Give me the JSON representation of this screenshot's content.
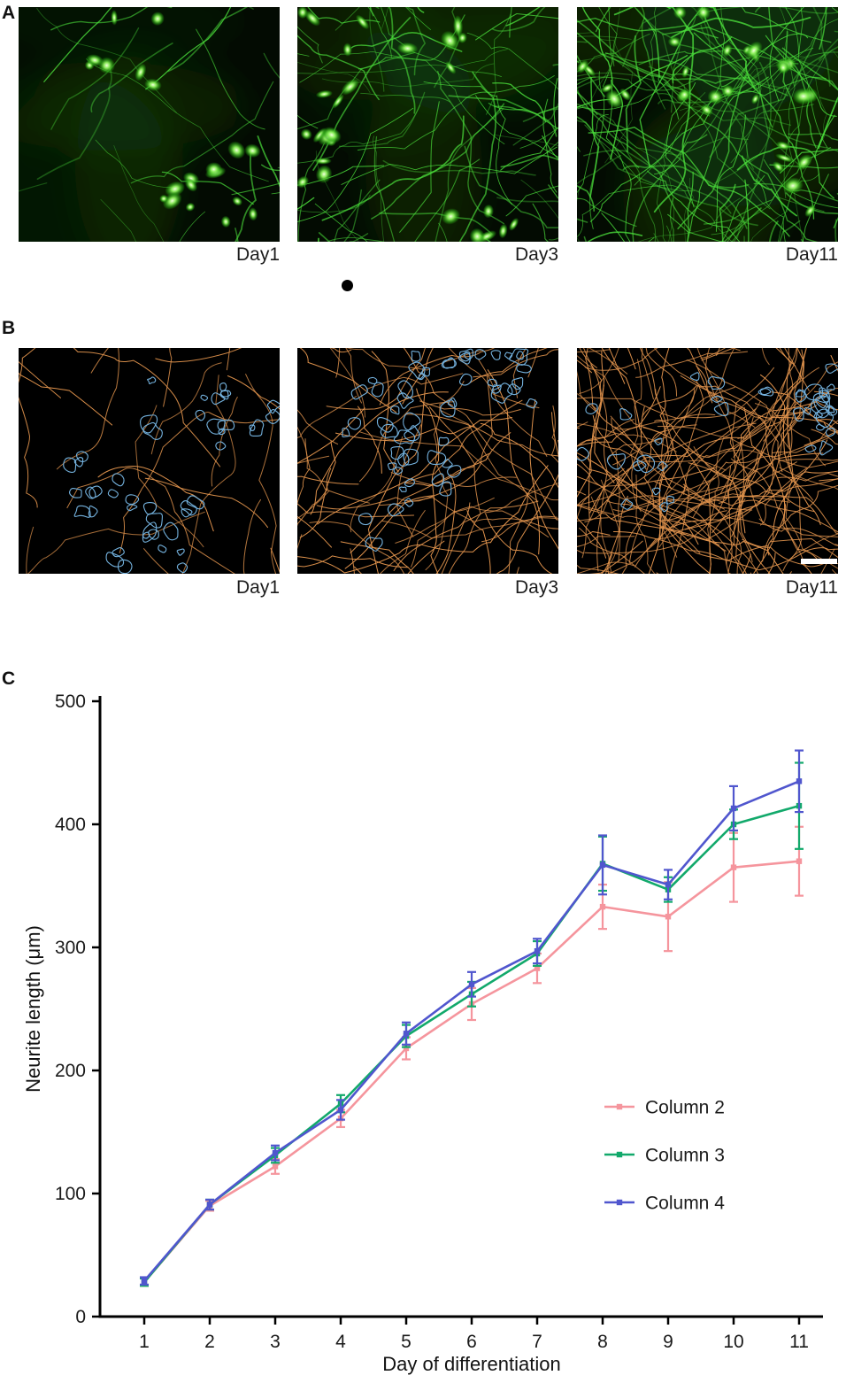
{
  "figure": {
    "background": "#ffffff",
    "panels": {
      "a": {
        "label": "A",
        "type": "fluorescence-micrographs",
        "signal_color": "#4ce13c",
        "images": [
          {
            "caption": "Day1",
            "render": {
              "seed": 14,
              "cells": 20,
              "clusters": 5,
              "neurites": 26,
              "haze": 0.3
            }
          },
          {
            "caption": "Day3",
            "render": {
              "seed": 29,
              "cells": 26,
              "clusters": 7,
              "neurites": 85,
              "haze": 0.4
            }
          },
          {
            "caption": "Day11",
            "render": {
              "seed": 47,
              "cells": 30,
              "clusters": 8,
              "neurites": 160,
              "haze": 0.5
            }
          }
        ]
      },
      "b": {
        "label": "B",
        "type": "traced-micrographs",
        "trace_colors": {
          "neurite": "#e2944d",
          "cell_body": "#74b2de"
        },
        "has_scale_bar": true,
        "images": [
          {
            "caption": "Day1",
            "render": {
              "seed": 61,
              "bodies": 44,
              "clusters": 5,
              "neurites": 24
            }
          },
          {
            "caption": "Day3",
            "render": {
              "seed": 79,
              "bodies": 54,
              "clusters": 7,
              "neurites": 80
            }
          },
          {
            "caption": "Day11",
            "render": {
              "seed": 97,
              "bodies": 38,
              "clusters": 7,
              "neurites": 175
            }
          }
        ]
      },
      "c": {
        "label": "C"
      }
    }
  },
  "chart_data": {
    "type": "line",
    "title": "",
    "xlabel": "Day of differentiation",
    "ylabel": "Neurite length (μm)",
    "x": [
      1,
      2,
      3,
      4,
      5,
      6,
      7,
      8,
      9,
      10,
      11
    ],
    "xlim": [
      0.3,
      11.4
    ],
    "ylim": [
      0,
      500
    ],
    "yticks": [
      0,
      100,
      200,
      300,
      400,
      500
    ],
    "grid": false,
    "error_bars": true,
    "legend_position": "inside-right",
    "series": [
      {
        "name": "Column 2",
        "color": "#F5959D",
        "values": [
          28,
          90,
          122,
          161,
          218,
          254,
          283,
          333,
          325,
          365,
          370
        ],
        "errors": [
          3,
          4,
          6,
          7,
          9,
          13,
          12,
          18,
          28,
          28,
          28
        ]
      },
      {
        "name": "Column 3",
        "color": "#12A96B",
        "values": [
          28,
          91,
          131,
          173,
          228,
          262,
          295,
          368,
          347,
          400,
          415
        ],
        "errors": [
          3,
          4,
          6,
          7,
          9,
          10,
          10,
          22,
          10,
          12,
          35
        ]
      },
      {
        "name": "Column 4",
        "color": "#5056CE",
        "values": [
          29,
          91,
          133,
          168,
          230,
          270,
          297,
          367,
          351,
          413,
          435
        ],
        "errors": [
          3,
          4,
          6,
          8,
          9,
          10,
          10,
          24,
          12,
          18,
          25
        ]
      }
    ]
  }
}
